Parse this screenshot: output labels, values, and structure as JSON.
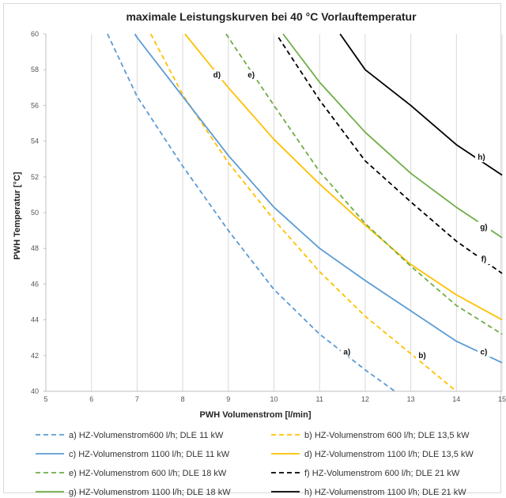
{
  "chart_data": {
    "type": "line",
    "title": "maximale Leistungskurven bei 40 °C Vorlauftemperatur",
    "xlabel": "PWH Volumenstrom [l/min]",
    "ylabel": "PWH Temperatur [°C]",
    "xlim": [
      5,
      15
    ],
    "ylim": [
      40,
      60
    ],
    "xticks": [
      "5",
      "6",
      "7",
      "8",
      "9",
      "10",
      "11",
      "12",
      "13",
      "14",
      "15"
    ],
    "yticks": [
      "40",
      "42",
      "44",
      "46",
      "48",
      "50",
      "52",
      "54",
      "56",
      "58",
      "60"
    ],
    "grid": "vertical",
    "legend_position": "bottom",
    "series": [
      {
        "key": "a",
        "name": "a)  HZ-Volumenstrom600 l/h; DLE 11 kW",
        "curve_label": "a)",
        "label_at": [
          11.6,
          42.1
        ],
        "color": "#5b9bd5",
        "dash": true,
        "x": [
          6.35,
          7,
          8,
          9,
          10,
          11,
          12,
          12.65
        ],
        "y": [
          60,
          56.5,
          52.6,
          49.0,
          45.7,
          43.2,
          41.2,
          40
        ]
      },
      {
        "key": "b",
        "name": "b)  HZ-Volumenstrom 600 l/h; DLE 13,5 kW",
        "curve_label": "b)",
        "label_at": [
          13.25,
          41.9
        ],
        "color": "#ffc000",
        "dash": true,
        "x": [
          7.3,
          8,
          9,
          10,
          11,
          12,
          13,
          14
        ],
        "y": [
          60,
          56.6,
          52.8,
          49.6,
          46.7,
          44.2,
          42.1,
          40
        ]
      },
      {
        "key": "c",
        "name": "c)  HZ-Volumenstrom 1100 l/h; DLE 11 kW",
        "curve_label": "c)",
        "label_at": [
          14.6,
          42.1
        ],
        "color": "#5b9bd5",
        "dash": false,
        "x": [
          6.95,
          7,
          8,
          9,
          10,
          11,
          12,
          13,
          14,
          15
        ],
        "y": [
          60,
          59.8,
          56.5,
          53.2,
          50.3,
          48.0,
          46.2,
          44.5,
          42.8,
          41.6
        ]
      },
      {
        "key": "d",
        "name": "d)  HZ-Volumenstrom 1100 l/h; DLE 13,5 kW",
        "curve_label": "d)",
        "label_at": [
          8.75,
          57.6
        ],
        "color": "#ffc000",
        "dash": false,
        "x": [
          8.05,
          9,
          10,
          11,
          12,
          13,
          14,
          15
        ],
        "y": [
          60,
          57.0,
          54.1,
          51.6,
          49.3,
          47.1,
          45.4,
          44.0
        ]
      },
      {
        "key": "e",
        "name": "e)  HZ-Volumenstrom 600 l/h; DLE 18 kW",
        "curve_label": "e)",
        "label_at": [
          9.5,
          57.6
        ],
        "color": "#70ad47",
        "dash": true,
        "x": [
          8.95,
          10,
          11,
          12,
          13,
          14,
          15
        ],
        "y": [
          60,
          56.0,
          52.3,
          49.4,
          47.0,
          44.8,
          43.2
        ]
      },
      {
        "key": "f",
        "name": "f)  HZ-Volumenstrom 600 l/h; DLE 21 kW",
        "curve_label": "f)",
        "label_at": [
          14.6,
          47.3
        ],
        "color": "#000000",
        "dash": true,
        "x": [
          10.1,
          11,
          12,
          13,
          14,
          15
        ],
        "y": [
          59.8,
          56.3,
          52.9,
          50.6,
          48.4,
          46.6
        ]
      },
      {
        "key": "g",
        "name": "g)  HZ-Volumenstrom 1100 l/h; DLE 18 kW",
        "curve_label": "g)",
        "label_at": [
          14.6,
          49.1
        ],
        "color": "#70ad47",
        "dash": false,
        "x": [
          10.2,
          11,
          12,
          13,
          14,
          15
        ],
        "y": [
          60,
          57.3,
          54.5,
          52.2,
          50.3,
          48.6
        ]
      },
      {
        "key": "h",
        "name": "h)  HZ-Volumenstrom 1100 l/h; DLE 21 kW",
        "curve_label": "h)",
        "label_at": [
          14.55,
          53.0
        ],
        "color": "#000000",
        "dash": false,
        "x": [
          11.45,
          12,
          13,
          14,
          15
        ],
        "y": [
          60,
          58.0,
          56.0,
          53.8,
          52.1
        ]
      }
    ]
  }
}
